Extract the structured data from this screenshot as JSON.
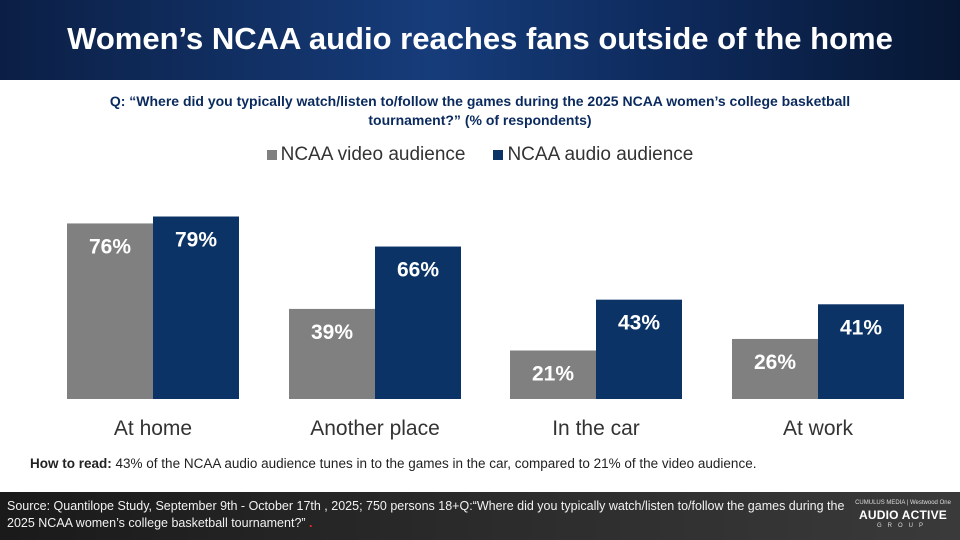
{
  "header": {
    "title": "Women’s NCAA audio reaches fans outside of the home"
  },
  "question": "Q: “Where did you typically watch/listen to/follow the games during the 2025 NCAA women’s college basketball tournament?” (% of respondents)",
  "chart_data": {
    "type": "bar",
    "categories": [
      "At home",
      "Another place",
      "In the car",
      "At work"
    ],
    "series": [
      {
        "name": "NCAA video audience",
        "values": [
          76,
          39,
          21,
          26
        ],
        "color": "#808080"
      },
      {
        "name": "NCAA audio audience",
        "values": [
          79,
          66,
          43,
          41
        ],
        "color": "#0b3366"
      }
    ],
    "data_labels": [
      [
        "76%",
        "39%",
        "21%",
        "26%"
      ],
      [
        "79%",
        "66%",
        "43%",
        "41%"
      ]
    ],
    "ylim": [
      0,
      100
    ],
    "legend": "top-center",
    "grid": false
  },
  "how_to_read": {
    "label": "How to read:",
    "text": "43% of the NCAA audio audience tunes in to the games in the car, compared to 21% of the video audience."
  },
  "footer": {
    "source": "Source: Quantilope Study, September 9th - October 17th , 2025; 750 persons 18+Q:“Where did you typically watch/listen to/follow the games during the 2025 NCAA women’s college basketball tournament?”",
    "logo_top": "CUMULUS MEDIA | Westwood One",
    "logo_main": "AUDIO ACTIVE",
    "logo_sub": "GROUP"
  }
}
